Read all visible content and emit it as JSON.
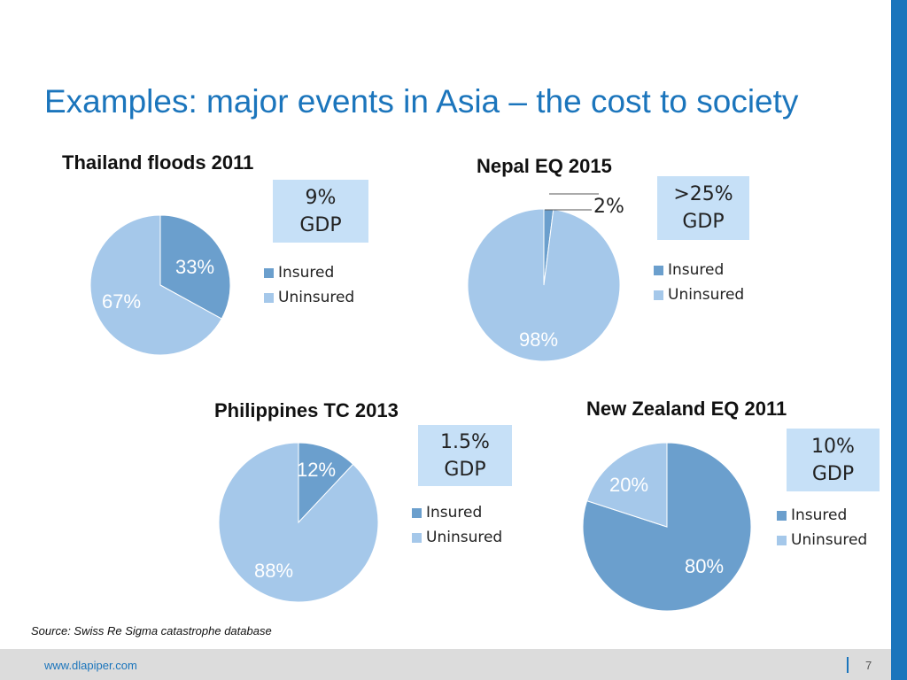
{
  "title": "Examples: major events in Asia – the cost to society",
  "colors": {
    "insured": "#6b9fcd",
    "uninsured": "#a5c8ea",
    "accent": "#1b75bc",
    "box": "#c6e0f7"
  },
  "source": "Source: Swiss Re Sigma catastrophe database",
  "footer": {
    "url": "www.dlapiper.com",
    "page": "7"
  },
  "chart_data": [
    {
      "type": "pie",
      "title": "Thailand floods 2011",
      "categories": [
        "Insured",
        "Uninsured"
      ],
      "values": [
        33,
        67
      ],
      "labels": [
        "33%",
        "67%"
      ],
      "gdp": [
        "9%",
        "GDP"
      ],
      "legend_position": "right"
    },
    {
      "type": "pie",
      "title": "Nepal EQ 2015",
      "categories": [
        "Insured",
        "Uninsured"
      ],
      "values": [
        2,
        98
      ],
      "labels": [
        "2%",
        "98%"
      ],
      "gdp": [
        ">25%",
        "GDP"
      ],
      "legend_position": "right"
    },
    {
      "type": "pie",
      "title": "Philippines TC 2013",
      "categories": [
        "Insured",
        "Uninsured"
      ],
      "values": [
        12,
        88
      ],
      "labels": [
        "12%",
        "88%"
      ],
      "gdp": [
        "1.5%",
        "GDP"
      ],
      "legend_position": "right"
    },
    {
      "type": "pie",
      "title": "New Zealand EQ 2011",
      "categories": [
        "Insured",
        "Uninsured"
      ],
      "values": [
        80,
        20
      ],
      "labels": [
        "80%",
        "20%"
      ],
      "gdp": [
        "10%",
        "GDP"
      ],
      "legend_position": "right"
    }
  ]
}
